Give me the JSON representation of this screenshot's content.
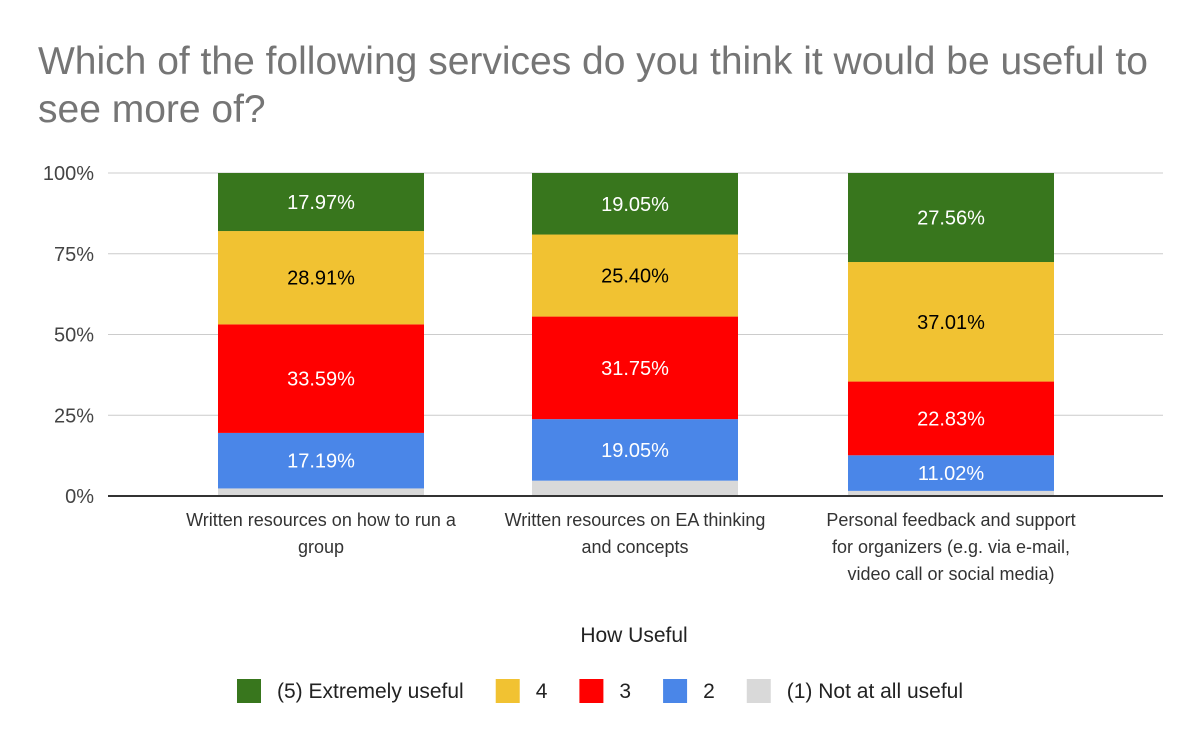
{
  "chart_data": {
    "type": "bar",
    "stacked": true,
    "title": "Which of the following services do you think it would be useful to see more of?",
    "legend_title": "How Useful",
    "legend_position": "bottom",
    "ylim": [
      0,
      100
    ],
    "y_ticks": [
      "0%",
      "25%",
      "50%",
      "75%",
      "100%"
    ],
    "y_tick_values": [
      0,
      25,
      50,
      75,
      100
    ],
    "grid": true,
    "categories": [
      [
        "Written resources on how to run a",
        "group"
      ],
      [
        "Written resources on EA thinking",
        "and concepts"
      ],
      [
        "Personal feedback and support",
        "for organizers (e.g. via e-mail,",
        "video call or social media)"
      ]
    ],
    "series": [
      {
        "name": "(1) Not at all useful",
        "color": "#d9d9d9",
        "label_color": "#000000",
        "values": [
          2.34,
          4.75,
          1.58
        ],
        "labels": [
          "",
          "",
          ""
        ]
      },
      {
        "name": "2",
        "color": "#4a86e8",
        "label_color": "#ffffff",
        "values": [
          17.19,
          19.05,
          11.02
        ],
        "labels": [
          "17.19%",
          "19.05%",
          "11.02%"
        ]
      },
      {
        "name": "3",
        "color": "#ff0000",
        "label_color": "#ffffff",
        "values": [
          33.59,
          31.75,
          22.83
        ],
        "labels": [
          "33.59%",
          "31.75%",
          "22.83%"
        ]
      },
      {
        "name": "4",
        "color": "#f1c232",
        "label_color": "#000000",
        "values": [
          28.91,
          25.4,
          37.01
        ],
        "labels": [
          "28.91%",
          "25.40%",
          "37.01%"
        ]
      },
      {
        "name": "(5) Extremely useful",
        "color": "#38761d",
        "label_color": "#ffffff",
        "values": [
          17.97,
          19.05,
          27.56
        ],
        "labels": [
          "17.97%",
          "19.05%",
          "27.56%"
        ]
      }
    ]
  }
}
